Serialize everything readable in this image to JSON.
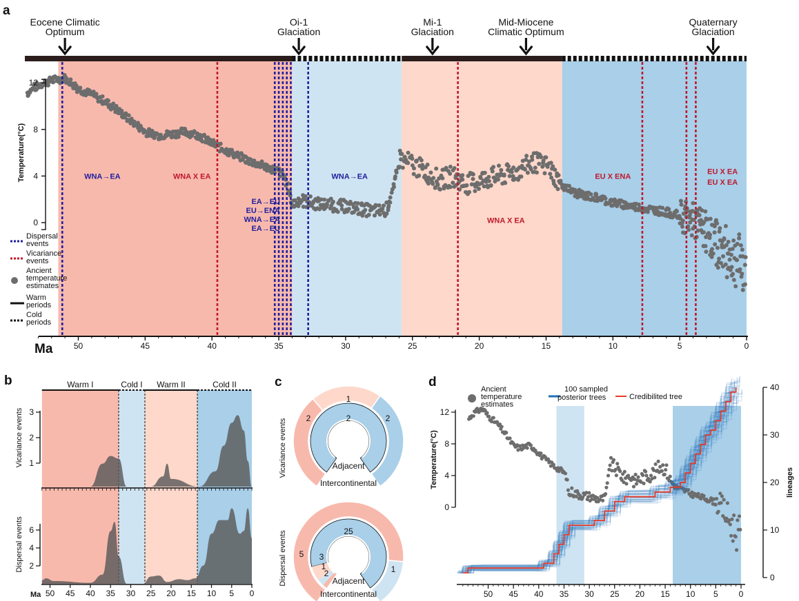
{
  "panel_labels": {
    "a": "a",
    "b": "b",
    "c": "c",
    "d": "d"
  },
  "colors": {
    "warm_strong": "#f8b9ad",
    "warm_light": "#fdd8cb",
    "cold_light": "#cfe4f2",
    "cold_strong": "#a9cfe9",
    "temp_points": "#6d6d6d",
    "dispersal": "#1f1f9c",
    "vicariance": "#c0182b",
    "posterior": "#1f6fb5",
    "credible": "#e63a2b",
    "density": "#5a5a5a"
  },
  "panel_a": {
    "climate_events": [
      {
        "line1": "Eocene Climatic",
        "line2": "Optimum",
        "ma": 51
      },
      {
        "line1": "Oi-1",
        "line2": "Glaciation",
        "ma": 33.5
      },
      {
        "line1": "Mi-1",
        "line2": "Glaciation",
        "ma": 23.5
      },
      {
        "line1": "Mid-Miocene",
        "line2": "Climatic Optimum",
        "ma": 16.5
      },
      {
        "line1": "Quaternary",
        "line2": "Glaciation",
        "ma": 2.5
      }
    ],
    "periods": [
      {
        "type": "warm",
        "from": 51.5,
        "to": 34.0,
        "color": "warm_strong",
        "bar": "solid"
      },
      {
        "type": "cold",
        "from": 34.0,
        "to": 25.8,
        "color": "cold_light",
        "bar": "dashed"
      },
      {
        "type": "warm",
        "from": 25.8,
        "to": 13.8,
        "color": "warm_light",
        "bar": "solid"
      },
      {
        "type": "cold",
        "from": 13.8,
        "to": 0,
        "color": "cold_strong",
        "bar": "dashed"
      }
    ],
    "bar_extra_warm_from": 54,
    "y_label": "Temperature(°C)",
    "y_ticks": [
      "0",
      "4",
      "8",
      "12"
    ],
    "x_label": "Ma",
    "x_ticks": [
      "50",
      "45",
      "40",
      "35",
      "30",
      "25",
      "20",
      "15",
      "10",
      "5",
      "0"
    ],
    "dispersal_lines": [
      51.2,
      35.3,
      35.0,
      34.7,
      34.4,
      34.1,
      32.8
    ],
    "vicariance_lines": [
      39.6,
      21.6,
      7.8,
      4.5,
      3.8
    ],
    "event_labels": [
      {
        "text": "WNA→EA",
        "type": "dispersal",
        "ma": 48.2,
        "y": 4
      },
      {
        "text": "WNA X EA",
        "type": "vicariance",
        "ma": 41.5,
        "y": 4
      },
      {
        "text": "WNA→EA",
        "type": "dispersal",
        "ma": 29.7,
        "y": 4
      },
      {
        "text": "EU X ENA",
        "type": "vicariance",
        "ma": 10.0,
        "y": 4
      },
      {
        "text": "EU X EA",
        "type": "vicariance",
        "ma": 1.8,
        "y": 4.4
      },
      {
        "text": "EU X EA",
        "type": "vicariance",
        "ma": 1.8,
        "y": 3.5
      },
      {
        "text": "WNA X EA",
        "type": "vicariance",
        "ma": 18.0,
        "y": 0.2
      }
    ],
    "stacked_labels": [
      "EA→EU",
      "EU→ENA",
      "WNA→EA",
      "EA→EU"
    ],
    "legend": [
      {
        "line1": "Dispersal",
        "line2": "events",
        "kind": "dispersal"
      },
      {
        "line1": "Vicariance",
        "line2": "events",
        "kind": "vicariance"
      },
      {
        "line1": "Ancient",
        "line2": "temperature",
        "line3": "estimates",
        "kind": "points"
      },
      {
        "line1": "Warm",
        "line2": "periods",
        "kind": "warm"
      },
      {
        "line1": "Cold",
        "line2": "periods",
        "kind": "cold"
      }
    ]
  },
  "panel_b": {
    "period_labels": [
      "Warm I",
      "Cold I",
      "Warm II",
      "Cold II"
    ],
    "top_y_label": "Vicariance events",
    "bottom_y_label": "Dispersal events",
    "top_ticks": [
      "1",
      "2",
      "3"
    ],
    "bottom_ticks": [
      "2",
      "4",
      "6"
    ],
    "x_label": "Ma",
    "x_ticks": [
      "50",
      "45",
      "40",
      "35",
      "30",
      "25",
      "20",
      "15",
      "10",
      "5",
      "0"
    ]
  },
  "panel_c": {
    "top_y_label": "Vicariance events",
    "bottom_y_label": "Dispersal events",
    "inner_label": "Adjacent",
    "outer_label": "Intercontinental",
    "top_values": {
      "outer_left": "2",
      "outer_top": "1",
      "outer_right": "2",
      "inner": "2"
    },
    "bottom_values": {
      "outer_left": "5",
      "outer_right": "1",
      "inner": "25",
      "inner_a": "3",
      "inner_b": "1",
      "inner_c": "2"
    }
  },
  "panel_d": {
    "legend": [
      {
        "line1": "Ancient",
        "line2": "temperature",
        "line3": "estimates",
        "kind": "points"
      },
      {
        "line1": "100 sampled",
        "line2": "posterior trees",
        "kind": "posterior"
      },
      {
        "line1": "Credibilited tree",
        "kind": "credible"
      }
    ],
    "y_label_left": "Temperature(°C)",
    "y_label_right": "lineages",
    "left_ticks": [
      "0",
      "4",
      "8",
      "12"
    ],
    "right_ticks": [
      "0",
      "10",
      "20",
      "30",
      "40"
    ],
    "x_ticks": [
      "50",
      "45",
      "40",
      "35",
      "30",
      "25",
      "20",
      "15",
      "10",
      "5",
      "0"
    ]
  },
  "chart_data": [
    {
      "type": "scatter",
      "panel": "a",
      "xlabel": "Ma",
      "ylabel": "Temperature(°C)",
      "xlim": [
        54,
        0
      ],
      "ylim": [
        -7,
        14
      ],
      "series": [
        {
          "x": [
            54,
            53,
            52,
            51,
            50,
            49,
            48,
            47,
            46,
            45,
            44,
            43,
            42,
            41,
            40,
            39,
            38,
            37,
            36,
            35,
            34.5,
            34,
            33.5,
            33,
            32,
            31,
            30,
            29,
            28,
            27,
            26.5,
            26,
            25,
            24,
            23,
            22,
            21,
            20,
            19,
            18,
            17,
            16,
            15,
            14.5,
            14,
            13,
            12,
            11,
            10,
            9,
            8,
            7,
            6,
            5,
            4,
            3,
            2,
            1,
            0
          ],
          "y": [
            11,
            11.8,
            12.2,
            12.4,
            11.5,
            11.0,
            10.4,
            9.6,
            8.7,
            7.8,
            7.5,
            7.6,
            7.8,
            7.5,
            6.8,
            6.2,
            5.7,
            5.2,
            4.8,
            4.4,
            3.8,
            1.5,
            2.0,
            1.8,
            1.6,
            1.5,
            1.4,
            1.2,
            1.0,
            1.1,
            2.4,
            5.5,
            5.0,
            4.4,
            3.6,
            4.0,
            3.3,
            3.6,
            3.9,
            4.1,
            4.5,
            5.2,
            4.9,
            4.3,
            3.4,
            2.6,
            2.3,
            2.1,
            1.7,
            1.5,
            1.3,
            1.1,
            0.9,
            0.6,
            0.2,
            -0.8,
            -2.0,
            -3.0,
            -3.8
          ]
        }
      ]
    },
    {
      "type": "area",
      "panel": "b",
      "xlim": [
        52,
        0
      ],
      "series": [
        {
          "name": "Vicariance events",
          "x": [
            52,
            40,
            37,
            35,
            33,
            31,
            25,
            22,
            21,
            20,
            13,
            9,
            7,
            5,
            3.5,
            2,
            1,
            0
          ],
          "y": [
            0,
            0,
            0.9,
            1.2,
            1.1,
            0,
            0,
            0.4,
            0.9,
            0.3,
            0,
            0.6,
            1.6,
            2.5,
            2.8,
            2.2,
            1.0,
            0
          ]
        },
        {
          "name": "Dispersal events",
          "x": [
            52,
            51,
            49,
            40,
            37,
            35,
            34,
            33,
            31,
            27,
            25,
            23,
            21,
            18,
            16,
            14,
            12,
            10,
            8,
            6,
            5,
            3,
            2,
            1,
            0
          ],
          "y": [
            0.4,
            0.6,
            0.3,
            0.1,
            1.0,
            5.8,
            6.8,
            3.0,
            0,
            0,
            0.8,
            0.9,
            0.2,
            0.5,
            0.4,
            0.6,
            2.0,
            5.5,
            7.0,
            7.0,
            8.3,
            5.5,
            5.8,
            8.3,
            5.0
          ]
        }
      ]
    },
    {
      "type": "line",
      "panel": "d",
      "xlim": [
        56,
        0
      ],
      "y_right_lim": [
        0,
        40
      ],
      "series": [
        {
          "name": "Credibilited tree",
          "x": [
            55,
            54,
            52,
            40,
            39,
            37,
            36,
            35,
            34,
            31,
            29,
            27,
            25,
            23,
            20,
            17,
            15,
            14,
            13,
            12,
            11,
            10,
            9,
            8,
            7,
            6,
            5,
            4,
            3,
            2,
            1
          ],
          "y": [
            1,
            2,
            2,
            2,
            3,
            5,
            7,
            9,
            11,
            11,
            12,
            14,
            16,
            17,
            17,
            18,
            18,
            19,
            19,
            20,
            22,
            24,
            26,
            28,
            30,
            31,
            33,
            35,
            37,
            39,
            40
          ]
        }
      ]
    }
  ]
}
